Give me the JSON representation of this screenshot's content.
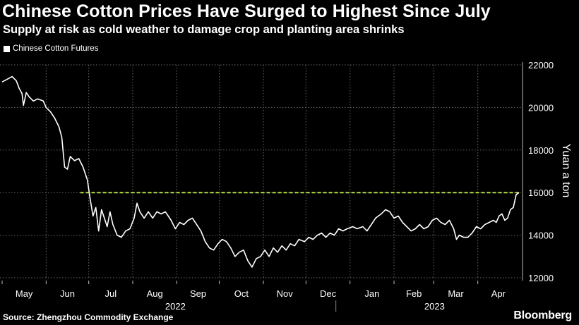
{
  "title": "Chinese Cotton Prices Have Surged to Highest Since July",
  "subtitle": "Supply at risk as cold weather to damage crop and planting area shrinks",
  "legend_label": "Chinese Cotton Futures",
  "source": "Source: Zhengzhou Commodity Exchange",
  "brand": "Bloomberg",
  "colors": {
    "background": "#000000",
    "line": "#ffffff",
    "reference": "#b5e04a",
    "grid": "#6a6a6a"
  },
  "chart_data": {
    "type": "line",
    "ylabel": "Yuan a ton",
    "ylim": [
      12000,
      22000
    ],
    "yticks": [
      12000,
      14000,
      16000,
      18000,
      20000,
      22000
    ],
    "y_axis_side": "right",
    "grid": true,
    "x_domain": [
      "2022-05-01",
      "2023-04-30"
    ],
    "month_ticks": [
      {
        "label": "May",
        "date": "2022-05-01"
      },
      {
        "label": "Jun",
        "date": "2022-06-01"
      },
      {
        "label": "Jul",
        "date": "2022-07-01"
      },
      {
        "label": "Aug",
        "date": "2022-08-01"
      },
      {
        "label": "Sep",
        "date": "2022-09-01"
      },
      {
        "label": "Oct",
        "date": "2022-10-01"
      },
      {
        "label": "Nov",
        "date": "2022-11-01"
      },
      {
        "label": "Dec",
        "date": "2022-12-01"
      },
      {
        "label": "Jan",
        "date": "2023-01-01"
      },
      {
        "label": "Feb",
        "date": "2023-02-01"
      },
      {
        "label": "Mar",
        "date": "2023-03-01"
      },
      {
        "label": "Apr",
        "date": "2023-04-01"
      }
    ],
    "year_labels": [
      {
        "label": "2022",
        "from": "2022-05-01",
        "to": "2022-12-31"
      },
      {
        "label": "2023",
        "from": "2023-01-01",
        "to": "2023-04-30"
      }
    ],
    "reference_line": {
      "value": 16000,
      "from": "2022-07-01",
      "to": "2023-04-30",
      "style": "dashed"
    },
    "series": [
      {
        "name": "Chinese Cotton Futures",
        "points": [
          [
            "2022-05-01",
            21200
          ],
          [
            "2022-05-04",
            21300
          ],
          [
            "2022-05-08",
            21450
          ],
          [
            "2022-05-11",
            21250
          ],
          [
            "2022-05-13",
            20900
          ],
          [
            "2022-05-15",
            20650
          ],
          [
            "2022-05-16",
            20100
          ],
          [
            "2022-05-18",
            20700
          ],
          [
            "2022-05-20",
            20500
          ],
          [
            "2022-05-23",
            20300
          ],
          [
            "2022-05-26",
            20400
          ],
          [
            "2022-05-30",
            20300
          ],
          [
            "2022-06-01",
            20000
          ],
          [
            "2022-06-04",
            19800
          ],
          [
            "2022-06-07",
            19500
          ],
          [
            "2022-06-10",
            19100
          ],
          [
            "2022-06-12",
            18600
          ],
          [
            "2022-06-14",
            17200
          ],
          [
            "2022-06-16",
            17100
          ],
          [
            "2022-06-18",
            17700
          ],
          [
            "2022-06-21",
            17500
          ],
          [
            "2022-06-24",
            17600
          ],
          [
            "2022-06-27",
            17200
          ],
          [
            "2022-06-30",
            16600
          ],
          [
            "2022-07-02",
            15700
          ],
          [
            "2022-07-04",
            14900
          ],
          [
            "2022-07-06",
            15300
          ],
          [
            "2022-07-08",
            14200
          ],
          [
            "2022-07-10",
            15200
          ],
          [
            "2022-07-12",
            14800
          ],
          [
            "2022-07-14",
            14400
          ],
          [
            "2022-07-16",
            15100
          ],
          [
            "2022-07-18",
            14500
          ],
          [
            "2022-07-21",
            14000
          ],
          [
            "2022-07-24",
            13900
          ],
          [
            "2022-07-27",
            14200
          ],
          [
            "2022-07-30",
            14300
          ],
          [
            "2022-08-02",
            14800
          ],
          [
            "2022-08-04",
            15500
          ],
          [
            "2022-08-06",
            15100
          ],
          [
            "2022-08-09",
            14800
          ],
          [
            "2022-08-12",
            15100
          ],
          [
            "2022-08-15",
            14800
          ],
          [
            "2022-08-18",
            15100
          ],
          [
            "2022-08-21",
            15000
          ],
          [
            "2022-08-24",
            15100
          ],
          [
            "2022-08-28",
            14700
          ],
          [
            "2022-08-31",
            14300
          ],
          [
            "2022-09-03",
            14600
          ],
          [
            "2022-09-06",
            14500
          ],
          [
            "2022-09-09",
            14700
          ],
          [
            "2022-09-12",
            14800
          ],
          [
            "2022-09-15",
            14500
          ],
          [
            "2022-09-18",
            14200
          ],
          [
            "2022-09-21",
            13700
          ],
          [
            "2022-09-24",
            13400
          ],
          [
            "2022-09-27",
            13300
          ],
          [
            "2022-09-30",
            13600
          ],
          [
            "2022-10-03",
            13800
          ],
          [
            "2022-10-06",
            13700
          ],
          [
            "2022-10-09",
            13400
          ],
          [
            "2022-10-12",
            13000
          ],
          [
            "2022-10-15",
            13200
          ],
          [
            "2022-10-18",
            13300
          ],
          [
            "2022-10-21",
            12800
          ],
          [
            "2022-10-24",
            12500
          ],
          [
            "2022-10-27",
            12900
          ],
          [
            "2022-10-30",
            13000
          ],
          [
            "2022-11-02",
            13300
          ],
          [
            "2022-11-05",
            13000
          ],
          [
            "2022-11-08",
            13400
          ],
          [
            "2022-11-11",
            13200
          ],
          [
            "2022-11-14",
            13500
          ],
          [
            "2022-11-17",
            13300
          ],
          [
            "2022-11-20",
            13600
          ],
          [
            "2022-11-23",
            13500
          ],
          [
            "2022-11-26",
            13800
          ],
          [
            "2022-11-30",
            13700
          ],
          [
            "2022-12-03",
            13900
          ],
          [
            "2022-12-06",
            13800
          ],
          [
            "2022-12-09",
            14000
          ],
          [
            "2022-12-12",
            14100
          ],
          [
            "2022-12-15",
            13900
          ],
          [
            "2022-12-18",
            14100
          ],
          [
            "2022-12-21",
            14000
          ],
          [
            "2022-12-24",
            14300
          ],
          [
            "2022-12-27",
            14200
          ],
          [
            "2022-12-30",
            14300
          ],
          [
            "2023-01-03",
            14400
          ],
          [
            "2023-01-06",
            14300
          ],
          [
            "2023-01-10",
            14400
          ],
          [
            "2023-01-13",
            14200
          ],
          [
            "2023-01-16",
            14500
          ],
          [
            "2023-01-19",
            14800
          ],
          [
            "2023-01-23",
            15000
          ],
          [
            "2023-01-26",
            15200
          ],
          [
            "2023-01-29",
            15100
          ],
          [
            "2023-02-01",
            14800
          ],
          [
            "2023-02-04",
            14900
          ],
          [
            "2023-02-07",
            14600
          ],
          [
            "2023-02-10",
            14400
          ],
          [
            "2023-02-13",
            14200
          ],
          [
            "2023-02-16",
            14300
          ],
          [
            "2023-02-19",
            14500
          ],
          [
            "2023-02-22",
            14300
          ],
          [
            "2023-02-25",
            14400
          ],
          [
            "2023-02-28",
            14700
          ],
          [
            "2023-03-03",
            14800
          ],
          [
            "2023-03-06",
            14600
          ],
          [
            "2023-03-09",
            14500
          ],
          [
            "2023-03-12",
            14700
          ],
          [
            "2023-03-15",
            14300
          ],
          [
            "2023-03-17",
            13800
          ],
          [
            "2023-03-19",
            14000
          ],
          [
            "2023-03-22",
            13900
          ],
          [
            "2023-03-25",
            13900
          ],
          [
            "2023-03-28",
            14100
          ],
          [
            "2023-03-31",
            14400
          ],
          [
            "2023-04-03",
            14300
          ],
          [
            "2023-04-06",
            14500
          ],
          [
            "2023-04-09",
            14600
          ],
          [
            "2023-04-12",
            14700
          ],
          [
            "2023-04-14",
            14600
          ],
          [
            "2023-04-16",
            14900
          ],
          [
            "2023-04-18",
            15000
          ],
          [
            "2023-04-20",
            14700
          ],
          [
            "2023-04-22",
            14800
          ],
          [
            "2023-04-24",
            15200
          ],
          [
            "2023-04-26",
            15300
          ],
          [
            "2023-04-28",
            15900
          ],
          [
            "2023-04-30",
            16000
          ]
        ]
      }
    ]
  }
}
